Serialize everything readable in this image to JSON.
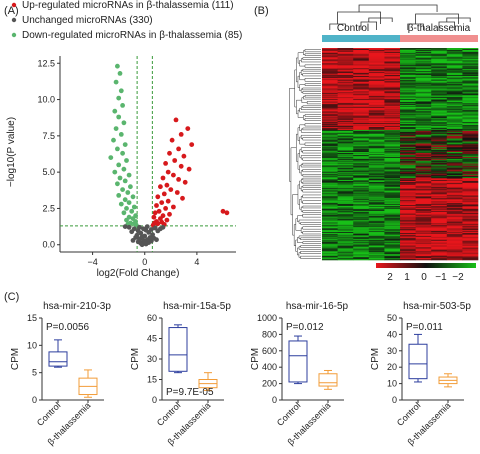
{
  "panel_labels": [
    "(A)",
    "(B)",
    "(C)"
  ],
  "colors": {
    "up": "#d7191c",
    "unchanged": "#555555",
    "down": "#5ab56e",
    "control_bar": "#4fb3c8",
    "thal_bar": "#f08f8f",
    "box_control": "#2c3e9e",
    "box_thal": "#f29c38",
    "heat_high": "#e8161c",
    "heat_mid": "#101010",
    "heat_low": "#18c018"
  },
  "chart_data": [
    {
      "type": "scatter",
      "panel": "(A)",
      "xlabel": "log2(Fold Change)",
      "ylabel": "−log10(P value)",
      "xlim": [
        -6.5,
        7
      ],
      "ylim": [
        -0.5,
        13
      ],
      "xticks": [
        "−4",
        "0",
        "4"
      ],
      "xtick_values": [
        -4,
        0,
        4
      ],
      "yticks": [
        "0.0",
        "2.5",
        "5.0",
        "7.5",
        "10.0",
        "12.5"
      ],
      "ytick_values": [
        0,
        2.5,
        5,
        7.5,
        10,
        12.5
      ],
      "thresholds": {
        "fold_change": [
          -0.585,
          0.585
        ],
        "p_value_line": 1.3
      },
      "legend": [
        {
          "label": "Up-regulated microRNAs in β-thalassemia (111)",
          "color": "#d7191c"
        },
        {
          "label": "Unchanged microRNAs (330)",
          "color": "#555555"
        },
        {
          "label": "Down-regulated microRNAs in β-thalassemia (85)",
          "color": "#5ab56e"
        }
      ],
      "series": [
        {
          "group": "down",
          "points": [
            [
              -2.1,
              12.3
            ],
            [
              -1.9,
              11.8
            ],
            [
              -2.2,
              11.2
            ],
            [
              -1.8,
              10.6
            ],
            [
              -2.0,
              10.1
            ],
            [
              -1.7,
              9.6
            ],
            [
              -2.3,
              9.2
            ],
            [
              -2.0,
              8.8
            ],
            [
              -1.6,
              8.4
            ],
            [
              -2.2,
              8.0
            ],
            [
              -1.8,
              7.6
            ],
            [
              -2.4,
              7.2
            ],
            [
              -1.5,
              6.9
            ],
            [
              -2.1,
              6.6
            ],
            [
              -1.7,
              6.3
            ],
            [
              -2.6,
              6.0
            ],
            [
              -1.4,
              5.8
            ],
            [
              -2.0,
              5.5
            ],
            [
              -1.6,
              5.2
            ],
            [
              -2.3,
              5.0
            ],
            [
              -1.2,
              4.8
            ],
            [
              -1.9,
              4.6
            ],
            [
              -1.5,
              4.4
            ],
            [
              -2.1,
              4.2
            ],
            [
              -1.1,
              4.0
            ],
            [
              -1.7,
              3.8
            ],
            [
              -1.3,
              3.6
            ],
            [
              -2.0,
              3.4
            ],
            [
              -0.9,
              3.3
            ],
            [
              -1.5,
              3.1
            ],
            [
              -1.2,
              2.9
            ],
            [
              -1.8,
              2.8
            ],
            [
              -0.8,
              2.6
            ],
            [
              -1.4,
              2.5
            ],
            [
              -1.0,
              2.3
            ],
            [
              -1.6,
              2.2
            ],
            [
              -0.7,
              2.0
            ],
            [
              -1.2,
              1.9
            ],
            [
              -0.9,
              1.8
            ],
            [
              -1.4,
              1.7
            ],
            [
              -0.7,
              1.6
            ],
            [
              -1.1,
              1.5
            ],
            [
              -0.8,
              1.45
            ],
            [
              -1.3,
              1.4
            ],
            [
              -0.65,
              1.35
            ]
          ]
        },
        {
          "group": "up",
          "points": [
            [
              2.4,
              8.6
            ],
            [
              3.3,
              8.0
            ],
            [
              2.8,
              7.6
            ],
            [
              2.1,
              7.2
            ],
            [
              3.6,
              6.9
            ],
            [
              2.6,
              6.6
            ],
            [
              1.9,
              6.3
            ],
            [
              3.0,
              6.1
            ],
            [
              2.3,
              5.8
            ],
            [
              1.6,
              5.6
            ],
            [
              2.8,
              5.4
            ],
            [
              3.4,
              5.2
            ],
            [
              1.8,
              5.0
            ],
            [
              2.2,
              4.8
            ],
            [
              1.4,
              4.6
            ],
            [
              2.6,
              4.5
            ],
            [
              3.1,
              4.3
            ],
            [
              1.7,
              4.1
            ],
            [
              1.2,
              4.0
            ],
            [
              2.0,
              3.8
            ],
            [
              2.5,
              3.6
            ],
            [
              1.5,
              3.5
            ],
            [
              1.0,
              3.3
            ],
            [
              2.9,
              3.2
            ],
            [
              1.8,
              3.0
            ],
            [
              1.3,
              2.9
            ],
            [
              0.9,
              2.7
            ],
            [
              2.2,
              2.6
            ],
            [
              1.6,
              2.5
            ],
            [
              1.1,
              2.3
            ],
            [
              0.8,
              2.2
            ],
            [
              1.9,
              2.1
            ],
            [
              1.4,
              2.0
            ],
            [
              0.7,
              1.9
            ],
            [
              1.2,
              1.8
            ],
            [
              1.7,
              1.7
            ],
            [
              0.9,
              1.6
            ],
            [
              1.3,
              1.55
            ],
            [
              0.75,
              1.5
            ],
            [
              1.0,
              1.45
            ],
            [
              1.5,
              1.4
            ],
            [
              0.65,
              1.35
            ],
            [
              6.0,
              2.3
            ],
            [
              6.3,
              2.2
            ]
          ]
        },
        {
          "group": "unchanged",
          "points": [
            [
              -0.5,
              0.2
            ],
            [
              -0.3,
              0.1
            ],
            [
              0.1,
              0.05
            ],
            [
              0.3,
              0.15
            ],
            [
              0.5,
              0.25
            ],
            [
              -0.4,
              0.4
            ],
            [
              -0.1,
              0.3
            ],
            [
              0.2,
              0.35
            ],
            [
              0.4,
              0.5
            ],
            [
              -0.2,
              0.55
            ],
            [
              0.0,
              0.6
            ],
            [
              -0.6,
              0.65
            ],
            [
              0.6,
              0.7
            ],
            [
              -0.3,
              0.8
            ],
            [
              0.3,
              0.85
            ],
            [
              -0.5,
              0.95
            ],
            [
              0.1,
              1.0
            ],
            [
              0.5,
              1.05
            ],
            [
              -0.1,
              1.1
            ],
            [
              -0.4,
              1.2
            ],
            [
              0.2,
              1.25
            ],
            [
              -0.8,
              1.1
            ],
            [
              0.8,
              1.15
            ],
            [
              -1.0,
              0.9
            ],
            [
              1.0,
              0.95
            ],
            [
              -1.2,
              1.2
            ],
            [
              1.2,
              1.1
            ],
            [
              -0.7,
              0.5
            ],
            [
              0.7,
              0.45
            ],
            [
              -0.2,
              0.0
            ],
            [
              0.0,
              0.2
            ],
            [
              -1.5,
              1.25
            ],
            [
              1.4,
              1.2
            ],
            [
              -0.9,
              0.3
            ],
            [
              0.9,
              0.35
            ]
          ]
        }
      ]
    },
    {
      "type": "heatmap",
      "panel": "(B)",
      "groups": [
        {
          "label": "Control",
          "color": "#4fb3c8",
          "columns": 5
        },
        {
          "label": "β-thalassemia",
          "color": "#f08f8f",
          "columns": 5
        }
      ],
      "rows": 220,
      "color_scale": {
        "ticks": [
          "2",
          "1",
          "0",
          "−1",
          "−2"
        ],
        "tick_values": [
          2,
          1,
          0,
          -1,
          -2
        ]
      },
      "blocks": [
        {
          "row_from": 0,
          "row_to": 85,
          "control": "high",
          "thal": "low"
        },
        {
          "row_from": 85,
          "row_to": 135,
          "control": "low",
          "thal": "mixed"
        },
        {
          "row_from": 135,
          "row_to": 220,
          "control": "low",
          "thal": "high"
        }
      ]
    },
    {
      "type": "box",
      "panel": "(C)",
      "ylabel": "CPM",
      "categories": [
        "Control",
        "β-thalassemia"
      ],
      "plots": [
        {
          "title": "hsa-mir-210-3p",
          "pvalue": "P=0.0056",
          "pvalue_pos": "top",
          "ylim": [
            0,
            15
          ],
          "yticks": [
            0,
            5,
            10,
            15
          ],
          "boxes": [
            {
              "min": 6,
              "q1": 6.2,
              "median": 7,
              "q3": 8.8,
              "max": 11
            },
            {
              "min": 0.5,
              "q1": 1,
              "median": 2.5,
              "q3": 4,
              "max": 5.5
            }
          ]
        },
        {
          "title": "hsa-mir-15a-5p",
          "pvalue": "P=9.7E-05",
          "pvalue_pos": "bottom",
          "ylim": [
            0,
            60
          ],
          "yticks": [
            0,
            15,
            30,
            45,
            60
          ],
          "boxes": [
            {
              "min": 20,
              "q1": 21,
              "median": 33,
              "q3": 53,
              "max": 55
            },
            {
              "min": 7,
              "q1": 9,
              "median": 12,
              "q3": 15,
              "max": 20
            }
          ]
        },
        {
          "title": "hsa-mir-16-5p",
          "pvalue": "P=0.012",
          "pvalue_pos": "top",
          "ylim": [
            0,
            1000
          ],
          "yticks": [
            0,
            200,
            400,
            600,
            800,
            1000
          ],
          "boxes": [
            {
              "min": 200,
              "q1": 220,
              "median": 540,
              "q3": 720,
              "max": 780
            },
            {
              "min": 130,
              "q1": 170,
              "median": 210,
              "q3": 320,
              "max": 360
            }
          ]
        },
        {
          "title": "hsa-mir-503-5p",
          "pvalue": "P=0.011",
          "pvalue_pos": "top",
          "ylim": [
            0,
            50
          ],
          "yticks": [
            0,
            10,
            20,
            30,
            40,
            50
          ],
          "boxes": [
            {
              "min": 11,
              "q1": 13,
              "median": 22,
              "q3": 34,
              "max": 40
            },
            {
              "min": 8,
              "q1": 10,
              "median": 12,
              "q3": 14,
              "max": 16
            }
          ]
        }
      ]
    }
  ]
}
